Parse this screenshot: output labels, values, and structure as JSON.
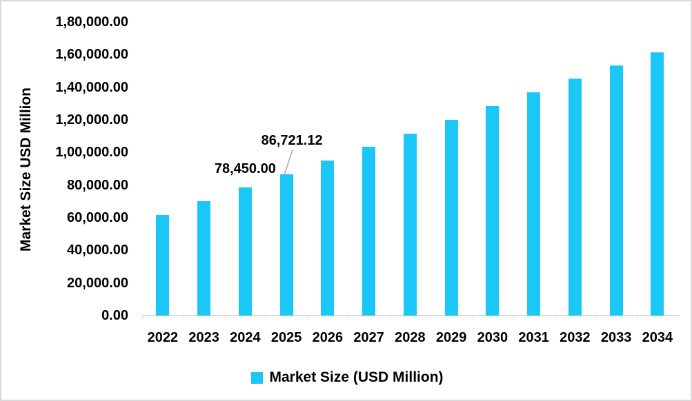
{
  "chart_data": {
    "type": "bar",
    "title": "",
    "xlabel": "",
    "ylabel": "Market Size USD Million",
    "categories": [
      "2022",
      "2023",
      "2024",
      "2025",
      "2026",
      "2027",
      "2028",
      "2029",
      "2030",
      "2031",
      "2032",
      "2033",
      "2034"
    ],
    "series": [
      {
        "name": "Market Size (USD Million)",
        "values": [
          61800,
          70200,
          78450,
          86721.12,
          94900,
          103500,
          111600,
          120000,
          128300,
          136800,
          145200,
          153500,
          161600
        ]
      }
    ],
    "ylim": [
      0,
      180000
    ],
    "y_ticks": [
      "0.00",
      "20,000.00",
      "40,000.00",
      "60,000.00",
      "80,000.00",
      "1,00,000.00",
      "1,20,000.00",
      "1,40,000.00",
      "1,60,000.00",
      "1,80,000.00"
    ],
    "grid": false,
    "legend": {
      "position": "bottom",
      "label": "Market Size (USD Million)"
    },
    "annotations": [
      {
        "category": "2024",
        "text": "78,450.00",
        "leader": false
      },
      {
        "category": "2025",
        "text": "86,721.12",
        "leader": true
      }
    ],
    "colors": {
      "bar": "#1bc7f6",
      "axis": "#d9d9d9",
      "leader_line": "#a6a6a6",
      "text": "#000000"
    }
  }
}
